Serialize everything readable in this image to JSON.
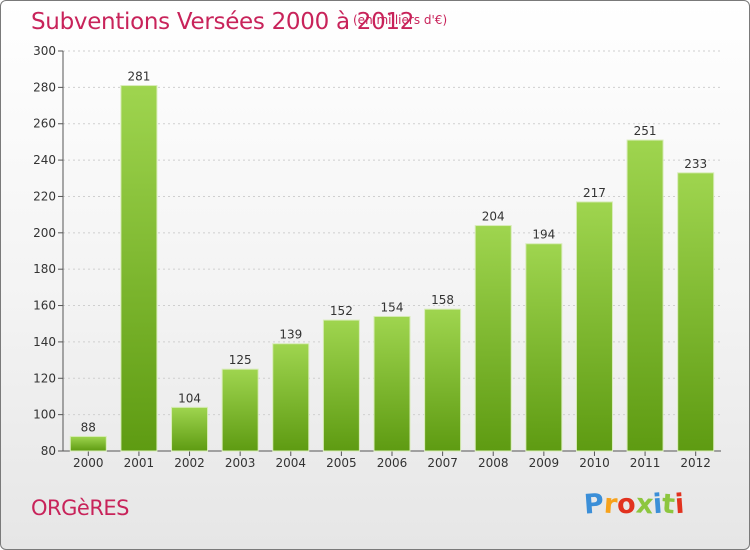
{
  "header": {
    "title": "Subventions Versées 2000 à 2012",
    "unit_note": "(en milliers d'€)"
  },
  "footer": {
    "commune": "ORGèRES",
    "logo_letters": [
      "P",
      "r",
      "o",
      "x",
      "i",
      "t",
      "i"
    ],
    "logo_colors": [
      "#3b8fd8",
      "#f7a21b",
      "#e2321f",
      "#8dc63f",
      "#3b8fd8",
      "#8dc63f",
      "#e2321f"
    ]
  },
  "chart_data": {
    "type": "bar",
    "categories": [
      "2000",
      "2001",
      "2002",
      "2003",
      "2004",
      "2005",
      "2006",
      "2007",
      "2008",
      "2009",
      "2010",
      "2011",
      "2012"
    ],
    "values": [
      88,
      281,
      104,
      125,
      139,
      152,
      154,
      158,
      204,
      194,
      217,
      251,
      233
    ],
    "ylim": [
      80,
      300
    ],
    "yticks": [
      "80",
      "100",
      "120",
      "140",
      "160",
      "180",
      "200",
      "220",
      "240",
      "260",
      "280",
      "300"
    ],
    "grid": "horizontal",
    "bar_color_light": "#9fd54f",
    "bar_color_dark": "#5e9b12"
  }
}
